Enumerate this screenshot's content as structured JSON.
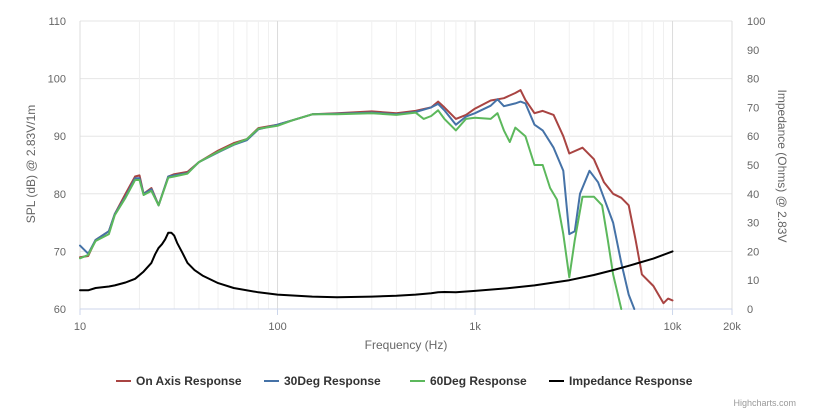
{
  "chart_data": {
    "type": "line",
    "x_axis": {
      "title": "Frequency (Hz)",
      "scale": "log",
      "range": [
        10,
        20000
      ],
      "ticks": [
        {
          "value": 10,
          "label": "10"
        },
        {
          "value": 100,
          "label": "100"
        },
        {
          "value": 1000,
          "label": "1k"
        },
        {
          "value": 10000,
          "label": "10k"
        },
        {
          "value": 20000,
          "label": "20k"
        }
      ],
      "grid": true
    },
    "y_left": {
      "title": "SPL (dB) @ 2.83V/1m",
      "range": [
        60,
        110
      ],
      "ticks": [
        "60",
        "70",
        "80",
        "90",
        "100",
        "110"
      ]
    },
    "y_right": {
      "title": "Impedance (Ohms) @ 2.83V",
      "range": [
        0,
        100
      ],
      "ticks": [
        "0",
        "10",
        "20",
        "30",
        "40",
        "50",
        "60",
        "70",
        "80",
        "90",
        "100"
      ]
    },
    "legend_position": "bottom-center",
    "credits": "Highcharts.com",
    "series": [
      {
        "name": "On Axis Response",
        "color": "#a94442",
        "axis": "left",
        "points": [
          [
            10,
            69
          ],
          [
            11,
            69.2
          ],
          [
            12,
            72
          ],
          [
            14,
            73.5
          ],
          [
            15,
            76.5
          ],
          [
            17,
            80
          ],
          [
            19,
            83
          ],
          [
            20,
            83.2
          ],
          [
            21,
            80
          ],
          [
            23,
            81
          ],
          [
            25,
            78
          ],
          [
            28,
            83
          ],
          [
            30,
            83.4
          ],
          [
            35,
            83.8
          ],
          [
            40,
            85.5
          ],
          [
            50,
            87.5
          ],
          [
            60,
            88.8
          ],
          [
            70,
            89.5
          ],
          [
            80,
            91.4
          ],
          [
            100,
            92
          ],
          [
            120,
            92.8
          ],
          [
            150,
            93.8
          ],
          [
            200,
            94
          ],
          [
            300,
            94.3
          ],
          [
            400,
            94
          ],
          [
            500,
            94.4
          ],
          [
            600,
            95
          ],
          [
            650,
            96
          ],
          [
            700,
            95
          ],
          [
            800,
            93
          ],
          [
            900,
            93.7
          ],
          [
            1000,
            94.8
          ],
          [
            1200,
            96.2
          ],
          [
            1400,
            96.6
          ],
          [
            1600,
            97.5
          ],
          [
            1700,
            98
          ],
          [
            1800,
            96.3
          ],
          [
            2000,
            94
          ],
          [
            2200,
            94.4
          ],
          [
            2500,
            93.7
          ],
          [
            2800,
            90
          ],
          [
            3000,
            87
          ],
          [
            3500,
            88
          ],
          [
            4000,
            86
          ],
          [
            4500,
            82
          ],
          [
            5000,
            80
          ],
          [
            5500,
            79.3
          ],
          [
            6000,
            78
          ],
          [
            6500,
            72
          ],
          [
            7000,
            66
          ],
          [
            8000,
            64
          ],
          [
            9000,
            61
          ],
          [
            9500,
            61.8
          ],
          [
            10000,
            61.5
          ]
        ]
      },
      {
        "name": "30Deg Response",
        "color": "#4572a7",
        "axis": "left",
        "points": [
          [
            10,
            71
          ],
          [
            11,
            69.6
          ],
          [
            12,
            72
          ],
          [
            14,
            73.5
          ],
          [
            15,
            76.5
          ],
          [
            17,
            79.5
          ],
          [
            19,
            82.7
          ],
          [
            20,
            82.7
          ],
          [
            21,
            80
          ],
          [
            23,
            80.8
          ],
          [
            25,
            78
          ],
          [
            28,
            83
          ],
          [
            30,
            83.2
          ],
          [
            35,
            83.6
          ],
          [
            40,
            85.5
          ],
          [
            50,
            87.2
          ],
          [
            60,
            88.5
          ],
          [
            70,
            89.3
          ],
          [
            80,
            91.2
          ],
          [
            100,
            92
          ],
          [
            120,
            92.8
          ],
          [
            150,
            93.8
          ],
          [
            200,
            93.9
          ],
          [
            300,
            94.1
          ],
          [
            400,
            93.8
          ],
          [
            500,
            94.2
          ],
          [
            600,
            95
          ],
          [
            650,
            95.6
          ],
          [
            700,
            94.5
          ],
          [
            800,
            92
          ],
          [
            900,
            93.4
          ],
          [
            1000,
            94
          ],
          [
            1200,
            95.3
          ],
          [
            1300,
            96.4
          ],
          [
            1400,
            95.2
          ],
          [
            1600,
            95.7
          ],
          [
            1700,
            96
          ],
          [
            1800,
            95.7
          ],
          [
            2000,
            92
          ],
          [
            2200,
            91
          ],
          [
            2500,
            88
          ],
          [
            2800,
            84
          ],
          [
            3000,
            73
          ],
          [
            3200,
            73.5
          ],
          [
            3400,
            80
          ],
          [
            3800,
            84
          ],
          [
            4200,
            82
          ],
          [
            5000,
            75
          ],
          [
            5500,
            68
          ],
          [
            6000,
            62.5
          ],
          [
            6400,
            60
          ]
        ]
      },
      {
        "name": "60Deg Response",
        "color": "#5cb85c",
        "axis": "left",
        "points": [
          [
            10,
            68.8
          ],
          [
            11,
            69.4
          ],
          [
            12,
            71.8
          ],
          [
            14,
            73
          ],
          [
            15,
            76.3
          ],
          [
            17,
            79.3
          ],
          [
            19,
            82.4
          ],
          [
            20,
            82.4
          ],
          [
            21,
            79.8
          ],
          [
            23,
            80.5
          ],
          [
            25,
            78
          ],
          [
            28,
            82.8
          ],
          [
            30,
            83
          ],
          [
            35,
            83.5
          ],
          [
            40,
            85.5
          ],
          [
            50,
            87.3
          ],
          [
            60,
            88.6
          ],
          [
            70,
            89.5
          ],
          [
            80,
            91.3
          ],
          [
            100,
            91.8
          ],
          [
            120,
            92.8
          ],
          [
            150,
            93.8
          ],
          [
            200,
            93.8
          ],
          [
            300,
            94
          ],
          [
            400,
            93.7
          ],
          [
            500,
            94.1
          ],
          [
            550,
            93
          ],
          [
            600,
            93.5
          ],
          [
            650,
            94.5
          ],
          [
            700,
            93
          ],
          [
            800,
            91
          ],
          [
            900,
            93
          ],
          [
            1000,
            93.2
          ],
          [
            1200,
            93
          ],
          [
            1300,
            94
          ],
          [
            1400,
            91
          ],
          [
            1500,
            89
          ],
          [
            1600,
            91.5
          ],
          [
            1800,
            90
          ],
          [
            2000,
            85
          ],
          [
            2200,
            85
          ],
          [
            2400,
            81
          ],
          [
            2600,
            79
          ],
          [
            2800,
            73
          ],
          [
            3000,
            65.5
          ],
          [
            3200,
            72
          ],
          [
            3500,
            79.5
          ],
          [
            4000,
            79.5
          ],
          [
            4400,
            78
          ],
          [
            4700,
            72
          ],
          [
            5000,
            66
          ],
          [
            5500,
            60
          ]
        ]
      },
      {
        "name": "Impedance Response",
        "color": "#000000",
        "axis": "right",
        "points": [
          [
            10,
            6.5
          ],
          [
            11,
            6.5
          ],
          [
            12,
            7.3
          ],
          [
            14,
            7.8
          ],
          [
            15,
            8.2
          ],
          [
            17,
            9.2
          ],
          [
            19,
            10.5
          ],
          [
            21,
            13
          ],
          [
            23,
            16
          ],
          [
            24,
            19
          ],
          [
            25,
            21.2
          ],
          [
            26,
            22.5
          ],
          [
            27,
            24.2
          ],
          [
            28,
            26.5
          ],
          [
            29,
            26.5
          ],
          [
            30,
            25.5
          ],
          [
            31,
            23
          ],
          [
            33,
            19.5
          ],
          [
            35,
            16
          ],
          [
            38,
            13.5
          ],
          [
            42,
            11.5
          ],
          [
            50,
            9
          ],
          [
            60,
            7.3
          ],
          [
            80,
            5.8
          ],
          [
            100,
            5
          ],
          [
            150,
            4.3
          ],
          [
            200,
            4.1
          ],
          [
            300,
            4.3
          ],
          [
            400,
            4.6
          ],
          [
            500,
            5
          ],
          [
            600,
            5.5
          ],
          [
            650,
            5.8
          ],
          [
            700,
            5.9
          ],
          [
            800,
            5.8
          ],
          [
            1000,
            6.3
          ],
          [
            1500,
            7.3
          ],
          [
            2000,
            8.2
          ],
          [
            3000,
            10
          ],
          [
            4000,
            11.8
          ],
          [
            5000,
            13.5
          ],
          [
            6000,
            15
          ],
          [
            8000,
            17.5
          ],
          [
            10000,
            20
          ]
        ]
      }
    ]
  }
}
